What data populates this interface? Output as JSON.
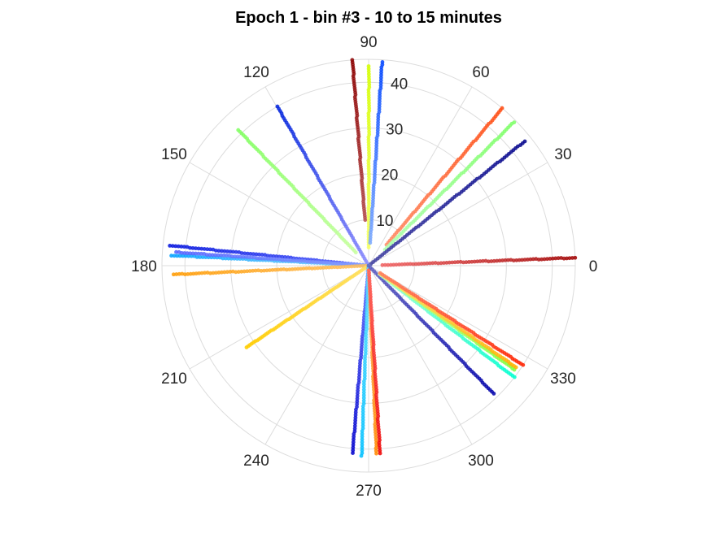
{
  "chart_data": {
    "type": "scatter",
    "coordinate_system": "polar",
    "title": "Epoch 1 - bin #3 - 10 to 15 minutes",
    "angle_unit": "degrees",
    "angle_ticks": [
      0,
      30,
      60,
      90,
      120,
      150,
      180,
      210,
      240,
      270,
      300,
      330
    ],
    "radial_ticks": [
      10,
      20,
      30,
      40
    ],
    "rlim": [
      0,
      45
    ],
    "grid": true,
    "series": [
      {
        "angle": 94.5,
        "r_range": [
          10,
          45
        ],
        "color_start": "#b44c4c",
        "color_end": "#8b0000"
      },
      {
        "angle": 89.9,
        "r_range": [
          4,
          43.5
        ],
        "color_start": "#f5ff60",
        "color_end": "#d4ff00"
      },
      {
        "angle": 86.2,
        "r_range": [
          5,
          44.5
        ],
        "color_start": "#7aa8ff",
        "color_end": "#0044ff"
      },
      {
        "angle": 119.8,
        "r_range": [
          0,
          40
        ],
        "color_start": "#8c8cff",
        "color_end": "#0022dd"
      },
      {
        "angle": 133.8,
        "r_range": [
          4,
          41
        ],
        "color_start": "#c8ffa0",
        "color_end": "#80ff60"
      },
      {
        "angle": 49.7,
        "r_range": [
          6,
          45
        ],
        "color_start": "#ff8c66",
        "color_end": "#ff4a10"
      },
      {
        "angle": 44.7,
        "r_range": [
          5,
          44.5
        ],
        "color_start": "#b0ffb0",
        "color_end": "#7dff66"
      },
      {
        "angle": 38.6,
        "r_range": [
          0,
          43.5
        ],
        "color_start": "#4040a0",
        "color_end": "#00008b"
      },
      {
        "angle": 2.2,
        "r_range": [
          3,
          45
        ],
        "color_start": "#f06060",
        "color_end": "#a00000"
      },
      {
        "angle": 174.2,
        "r_range": [
          0,
          43.5
        ],
        "color_start": "#5060ff",
        "color_end": "#0010dd"
      },
      {
        "angle": 177.0,
        "r_range": [
          0,
          43
        ],
        "color_start": "#80d0ff",
        "color_end": "#00a0ff"
      },
      {
        "angle": 176.0,
        "r_range": [
          0,
          42
        ],
        "color_start": "#8a9cff",
        "color_end": "#5060ff"
      },
      {
        "angle": 182.6,
        "r_range": [
          0,
          42.5
        ],
        "color_start": "#ffc060",
        "color_end": "#ff9a00"
      },
      {
        "angle": 213.8,
        "r_range": [
          0,
          32
        ],
        "color_start": "#ffe060",
        "color_end": "#ffcc00"
      },
      {
        "angle": 265.1,
        "r_range": [
          0,
          41
        ],
        "color_start": "#6070ff",
        "color_end": "#0000cd"
      },
      {
        "angle": 267.9,
        "r_range": [
          0,
          41.5
        ],
        "color_start": "#60e0ff",
        "color_end": "#00c0ff"
      },
      {
        "angle": 272.4,
        "r_range": [
          1,
          41
        ],
        "color_start": "#ffb060",
        "color_end": "#ff8800"
      },
      {
        "angle": 273.5,
        "r_range": [
          1,
          41
        ],
        "color_start": "#ff6060",
        "color_end": "#ee0000"
      },
      {
        "angle": 314.3,
        "r_range": [
          0,
          39
        ],
        "color_start": "#6060c0",
        "color_end": "#0000aa"
      },
      {
        "angle": 322.5,
        "r_range": [
          3,
          40
        ],
        "color_start": "#a0ffd0",
        "color_end": "#00ffd0"
      },
      {
        "angle": 324.5,
        "r_range": [
          3,
          39
        ],
        "color_start": "#d0ff80",
        "color_end": "#7fff40"
      },
      {
        "angle": 325.4,
        "r_range": [
          3,
          39
        ],
        "color_start": "#ffe070",
        "color_end": "#ffb000"
      },
      {
        "angle": 327.2,
        "r_range": [
          3,
          40
        ],
        "color_start": "#ff8060",
        "color_end": "#ff2200"
      }
    ]
  }
}
